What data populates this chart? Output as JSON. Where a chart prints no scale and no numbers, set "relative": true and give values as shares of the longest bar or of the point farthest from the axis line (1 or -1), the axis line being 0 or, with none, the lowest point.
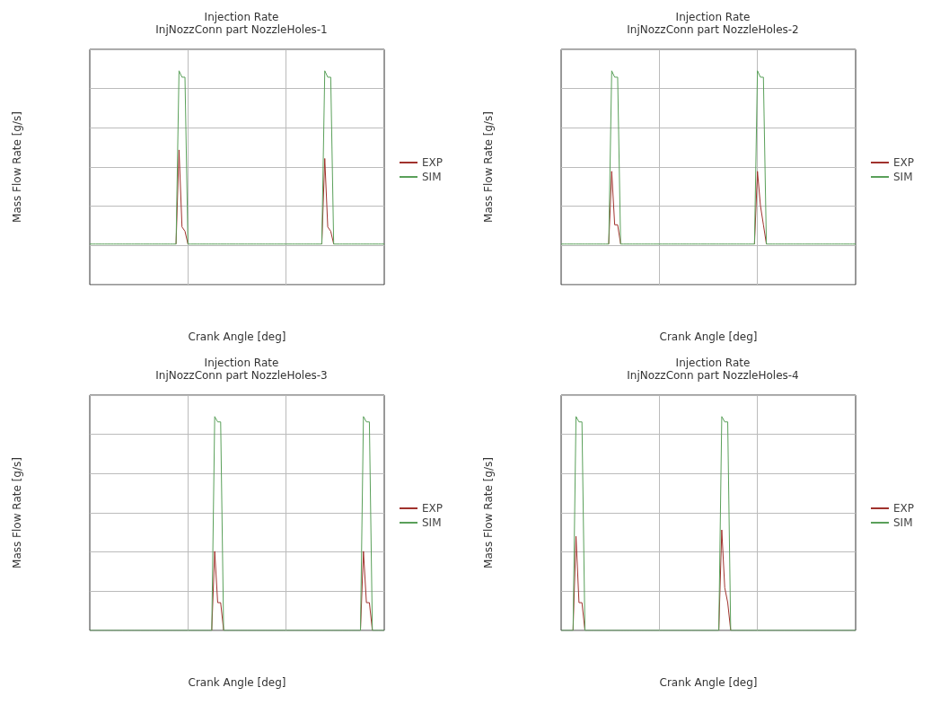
{
  "chart_data": [
    {
      "type": "line",
      "title": "Injection Rate",
      "subtitle": "InjNozzConn part NozzleHoles-1",
      "xlabel": "Crank Angle [deg]",
      "ylabel": "Mass Flow Rate [g/s]",
      "relative": true,
      "grid": true,
      "legend": "right",
      "marker": "none",
      "categories": [
        null,
        null,
        null,
        null,
        null,
        null,
        null,
        null,
        null,
        null,
        null,
        null,
        null,
        null,
        null,
        null,
        null,
        null,
        null,
        null,
        null,
        null,
        null,
        null,
        null,
        null,
        null,
        null,
        null,
        null,
        null,
        null,
        null,
        null,
        null,
        null,
        null,
        null,
        null,
        null,
        null,
        null,
        null,
        null,
        null,
        null,
        null,
        null,
        null,
        null,
        null,
        null,
        null,
        null,
        null,
        null,
        null,
        null,
        null,
        null,
        null,
        null,
        null,
        null,
        null,
        null,
        null,
        null,
        null,
        null,
        null,
        null,
        null,
        null,
        null,
        null,
        null,
        null,
        null,
        null,
        null,
        null,
        null,
        null,
        null,
        null,
        null,
        null,
        null,
        null,
        null,
        null,
        null,
        null,
        null,
        null,
        null,
        null,
        null,
        null
      ],
      "series": [
        {
          "name": "EXP",
          "color": "#a0322d",
          "values": [
            null,
            null,
            null,
            null,
            null,
            null,
            null,
            null,
            null,
            null,
            null,
            null,
            null,
            null,
            null,
            null,
            null,
            null,
            null,
            null,
            null,
            null,
            null,
            null,
            null,
            null,
            null,
            null,
            null,
            0.19,
            0.63,
            0.27,
            0.25,
            0.19,
            null,
            null,
            null,
            null,
            null,
            null,
            null,
            null,
            null,
            null,
            null,
            null,
            null,
            null,
            null,
            null,
            null,
            null,
            null,
            null,
            null,
            null,
            null,
            null,
            null,
            null,
            null,
            null,
            null,
            null,
            null,
            null,
            null,
            null,
            null,
            null,
            null,
            null,
            null,
            null,
            null,
            null,
            null,
            null,
            0.19,
            0.59,
            0.27,
            0.25,
            0.19,
            null,
            null,
            null,
            null,
            null,
            null,
            null,
            null,
            null,
            null,
            null,
            null,
            null,
            null,
            null,
            null,
            null
          ]
        },
        {
          "name": "SIM",
          "color": "#5aa05a",
          "values": [
            0.19,
            0.19,
            0.19,
            0.19,
            0.19,
            0.19,
            0.19,
            0.19,
            0.19,
            0.19,
            0.19,
            0.19,
            0.19,
            0.19,
            0.19,
            0.19,
            0.19,
            0.19,
            0.19,
            0.19,
            0.19,
            0.19,
            0.19,
            0.19,
            0.19,
            0.19,
            0.19,
            0.19,
            0.19,
            0.19,
            1.0,
            0.97,
            0.97,
            0.19,
            0.19,
            0.19,
            0.19,
            0.19,
            0.19,
            0.19,
            0.19,
            0.19,
            0.19,
            0.19,
            0.19,
            0.19,
            0.19,
            0.19,
            0.19,
            0.19,
            0.19,
            0.19,
            0.19,
            0.19,
            0.19,
            0.19,
            0.19,
            0.19,
            0.19,
            0.19,
            0.19,
            0.19,
            0.19,
            0.19,
            0.19,
            0.19,
            0.19,
            0.19,
            0.19,
            0.19,
            0.19,
            0.19,
            0.19,
            0.19,
            0.19,
            0.19,
            0.19,
            0.19,
            0.19,
            1.0,
            0.97,
            0.97,
            0.19,
            0.19,
            0.19,
            0.19,
            0.19,
            0.19,
            0.19,
            0.19,
            0.19,
            0.19,
            0.19,
            0.19,
            0.19,
            0.19,
            0.19,
            0.19,
            0.19,
            0.19
          ]
        }
      ]
    },
    {
      "type": "line",
      "title": "Injection Rate",
      "subtitle": "InjNozzConn part NozzleHoles-2",
      "xlabel": "Crank Angle [deg]",
      "ylabel": "Mass Flow Rate [g/s]",
      "relative": true,
      "grid": true,
      "legend": "right",
      "marker": "none",
      "categories": [
        null,
        null,
        null,
        null,
        null,
        null,
        null,
        null,
        null,
        null,
        null,
        null,
        null,
        null,
        null,
        null,
        null,
        null,
        null,
        null,
        null,
        null,
        null,
        null,
        null,
        null,
        null,
        null,
        null,
        null,
        null,
        null,
        null,
        null,
        null,
        null,
        null,
        null,
        null,
        null,
        null,
        null,
        null,
        null,
        null,
        null,
        null,
        null,
        null,
        null,
        null,
        null,
        null,
        null,
        null,
        null,
        null,
        null,
        null,
        null,
        null,
        null,
        null,
        null,
        null,
        null,
        null,
        null,
        null,
        null,
        null,
        null,
        null,
        null,
        null,
        null,
        null,
        null,
        null,
        null,
        null,
        null,
        null,
        null,
        null,
        null,
        null,
        null,
        null,
        null,
        null,
        null,
        null,
        null,
        null,
        null,
        null,
        null,
        null,
        null
      ],
      "series": [
        {
          "name": "EXP",
          "color": "#a0322d",
          "values": [
            null,
            null,
            null,
            null,
            null,
            null,
            null,
            null,
            null,
            null,
            null,
            null,
            null,
            null,
            null,
            null,
            0.19,
            0.53,
            0.28,
            0.28,
            0.19,
            null,
            null,
            null,
            null,
            null,
            null,
            null,
            null,
            null,
            null,
            null,
            null,
            null,
            null,
            null,
            null,
            null,
            null,
            null,
            null,
            null,
            null,
            null,
            null,
            null,
            null,
            null,
            null,
            null,
            null,
            null,
            null,
            null,
            null,
            null,
            null,
            null,
            null,
            null,
            null,
            null,
            null,
            null,
            null,
            0.19,
            0.53,
            0.37,
            0.28,
            0.19,
            null,
            null,
            null,
            null,
            null,
            null,
            null,
            null,
            null,
            null,
            null,
            null,
            null,
            null,
            null,
            null,
            null,
            null,
            null,
            null,
            null,
            null,
            null,
            null,
            null,
            null,
            null,
            null,
            null,
            null
          ]
        },
        {
          "name": "SIM",
          "color": "#5aa05a",
          "values": [
            0.19,
            0.19,
            0.19,
            0.19,
            0.19,
            0.19,
            0.19,
            0.19,
            0.19,
            0.19,
            0.19,
            0.19,
            0.19,
            0.19,
            0.19,
            0.19,
            0.19,
            1.0,
            0.97,
            0.97,
            0.19,
            0.19,
            0.19,
            0.19,
            0.19,
            0.19,
            0.19,
            0.19,
            0.19,
            0.19,
            0.19,
            0.19,
            0.19,
            0.19,
            0.19,
            0.19,
            0.19,
            0.19,
            0.19,
            0.19,
            0.19,
            0.19,
            0.19,
            0.19,
            0.19,
            0.19,
            0.19,
            0.19,
            0.19,
            0.19,
            0.19,
            0.19,
            0.19,
            0.19,
            0.19,
            0.19,
            0.19,
            0.19,
            0.19,
            0.19,
            0.19,
            0.19,
            0.19,
            0.19,
            0.19,
            0.19,
            1.0,
            0.97,
            0.97,
            0.19,
            0.19,
            0.19,
            0.19,
            0.19,
            0.19,
            0.19,
            0.19,
            0.19,
            0.19,
            0.19,
            0.19,
            0.19,
            0.19,
            0.19,
            0.19,
            0.19,
            0.19,
            0.19,
            0.19,
            0.19,
            0.19,
            0.19,
            0.19,
            0.19,
            0.19,
            0.19,
            0.19,
            0.19,
            0.19,
            0.19
          ]
        }
      ]
    },
    {
      "type": "line",
      "title": "Injection Rate",
      "subtitle": "InjNozzConn part NozzleHoles-3",
      "xlabel": "Crank Angle [deg]",
      "ylabel": "Mass Flow Rate [g/s]",
      "relative": true,
      "grid": true,
      "legend": "right",
      "marker": "none",
      "categories": [
        null,
        null,
        null,
        null,
        null,
        null,
        null,
        null,
        null,
        null,
        null,
        null,
        null,
        null,
        null,
        null,
        null,
        null,
        null,
        null,
        null,
        null,
        null,
        null,
        null,
        null,
        null,
        null,
        null,
        null,
        null,
        null,
        null,
        null,
        null,
        null,
        null,
        null,
        null,
        null,
        null,
        null,
        null,
        null,
        null,
        null,
        null,
        null,
        null,
        null,
        null,
        null,
        null,
        null,
        null,
        null,
        null,
        null,
        null,
        null,
        null,
        null,
        null,
        null,
        null,
        null,
        null,
        null,
        null,
        null,
        null,
        null,
        null,
        null,
        null,
        null,
        null,
        null,
        null,
        null,
        null,
        null,
        null,
        null,
        null,
        null,
        null,
        null,
        null,
        null,
        null,
        null,
        null,
        null,
        null,
        null,
        null,
        null,
        null,
        null
      ],
      "series": [
        {
          "name": "EXP",
          "color": "#a0322d",
          "values": [
            null,
            null,
            null,
            null,
            null,
            null,
            null,
            null,
            null,
            null,
            null,
            null,
            null,
            null,
            null,
            null,
            null,
            null,
            null,
            null,
            null,
            null,
            null,
            null,
            null,
            null,
            null,
            null,
            null,
            null,
            null,
            null,
            null,
            null,
            null,
            null,
            null,
            null,
            null,
            null,
            null,
            0,
            0.37,
            0.13,
            0.13,
            0,
            null,
            null,
            null,
            null,
            null,
            null,
            null,
            null,
            null,
            null,
            null,
            null,
            null,
            null,
            null,
            null,
            null,
            null,
            null,
            null,
            null,
            null,
            null,
            null,
            null,
            null,
            null,
            null,
            null,
            null,
            null,
            null,
            null,
            null,
            null,
            null,
            null,
            null,
            null,
            null,
            null,
            null,
            null,
            null,
            null,
            0,
            0.37,
            0.13,
            0.13,
            0,
            null,
            null,
            null,
            null
          ]
        },
        {
          "name": "SIM",
          "color": "#5aa05a",
          "values": [
            0,
            0,
            0,
            0,
            0,
            0,
            0,
            0,
            0,
            0,
            0,
            0,
            0,
            0,
            0,
            0,
            0,
            0,
            0,
            0,
            0,
            0,
            0,
            0,
            0,
            0,
            0,
            0,
            0,
            0,
            0,
            0,
            0,
            0,
            0,
            0,
            0,
            0,
            0,
            0,
            0,
            0,
            1.0,
            0.975,
            0.975,
            0,
            0,
            0,
            0,
            0,
            0,
            0,
            0,
            0,
            0,
            0,
            0,
            0,
            0,
            0,
            0,
            0,
            0,
            0,
            0,
            0,
            0,
            0,
            0,
            0,
            0,
            0,
            0,
            0,
            0,
            0,
            0,
            0,
            0,
            0,
            0,
            0,
            0,
            0,
            0,
            0,
            0,
            0,
            0,
            0,
            0,
            0,
            1.0,
            0.975,
            0.975,
            0,
            0,
            0,
            0,
            0
          ]
        }
      ]
    },
    {
      "type": "line",
      "title": "Injection Rate",
      "subtitle": "InjNozzConn part NozzleHoles-4",
      "xlabel": "Crank Angle [deg]",
      "ylabel": "Mass Flow Rate [g/s]",
      "relative": true,
      "grid": true,
      "legend": "right",
      "marker": "none",
      "categories": [
        null,
        null,
        null,
        null,
        null,
        null,
        null,
        null,
        null,
        null,
        null,
        null,
        null,
        null,
        null,
        null,
        null,
        null,
        null,
        null,
        null,
        null,
        null,
        null,
        null,
        null,
        null,
        null,
        null,
        null,
        null,
        null,
        null,
        null,
        null,
        null,
        null,
        null,
        null,
        null,
        null,
        null,
        null,
        null,
        null,
        null,
        null,
        null,
        null,
        null,
        null,
        null,
        null,
        null,
        null,
        null,
        null,
        null,
        null,
        null,
        null,
        null,
        null,
        null,
        null,
        null,
        null,
        null,
        null,
        null,
        null,
        null,
        null,
        null,
        null,
        null,
        null,
        null,
        null,
        null,
        null,
        null,
        null,
        null,
        null,
        null,
        null,
        null,
        null,
        null,
        null,
        null,
        null,
        null,
        null,
        null,
        null,
        null,
        null,
        null
      ],
      "series": [
        {
          "name": "EXP",
          "color": "#a0322d",
          "values": [
            null,
            null,
            null,
            null,
            0,
            0.44,
            0.13,
            0.13,
            0,
            null,
            null,
            null,
            null,
            null,
            null,
            null,
            null,
            null,
            null,
            null,
            null,
            null,
            null,
            null,
            null,
            null,
            null,
            null,
            null,
            null,
            null,
            null,
            null,
            null,
            null,
            null,
            null,
            null,
            null,
            null,
            null,
            null,
            null,
            null,
            null,
            null,
            null,
            null,
            null,
            null,
            null,
            null,
            null,
            0,
            0.47,
            0.2,
            0.13,
            0,
            null,
            null,
            null,
            null,
            null,
            null,
            null,
            null,
            null,
            null,
            null,
            null,
            null,
            null,
            null,
            null,
            null,
            null,
            null,
            null,
            null,
            null,
            null,
            null,
            null,
            null,
            null,
            null,
            null,
            null,
            null,
            null,
            null,
            null,
            null,
            null,
            null,
            null,
            null,
            null,
            null,
            null
          ]
        },
        {
          "name": "SIM",
          "color": "#5aa05a",
          "values": [
            0,
            0,
            0,
            0,
            0,
            1.0,
            0.975,
            0.975,
            0,
            0,
            0,
            0,
            0,
            0,
            0,
            0,
            0,
            0,
            0,
            0,
            0,
            0,
            0,
            0,
            0,
            0,
            0,
            0,
            0,
            0,
            0,
            0,
            0,
            0,
            0,
            0,
            0,
            0,
            0,
            0,
            0,
            0,
            0,
            0,
            0,
            0,
            0,
            0,
            0,
            0,
            0,
            0,
            0,
            0,
            1.0,
            0.975,
            0.975,
            0,
            0,
            0,
            0,
            0,
            0,
            0,
            0,
            0,
            0,
            0,
            0,
            0,
            0,
            0,
            0,
            0,
            0,
            0,
            0,
            0,
            0,
            0,
            0,
            0,
            0,
            0,
            0,
            0,
            0,
            0,
            0,
            0,
            0,
            0,
            0,
            0,
            0,
            0,
            0,
            0,
            0,
            0
          ]
        }
      ]
    }
  ]
}
